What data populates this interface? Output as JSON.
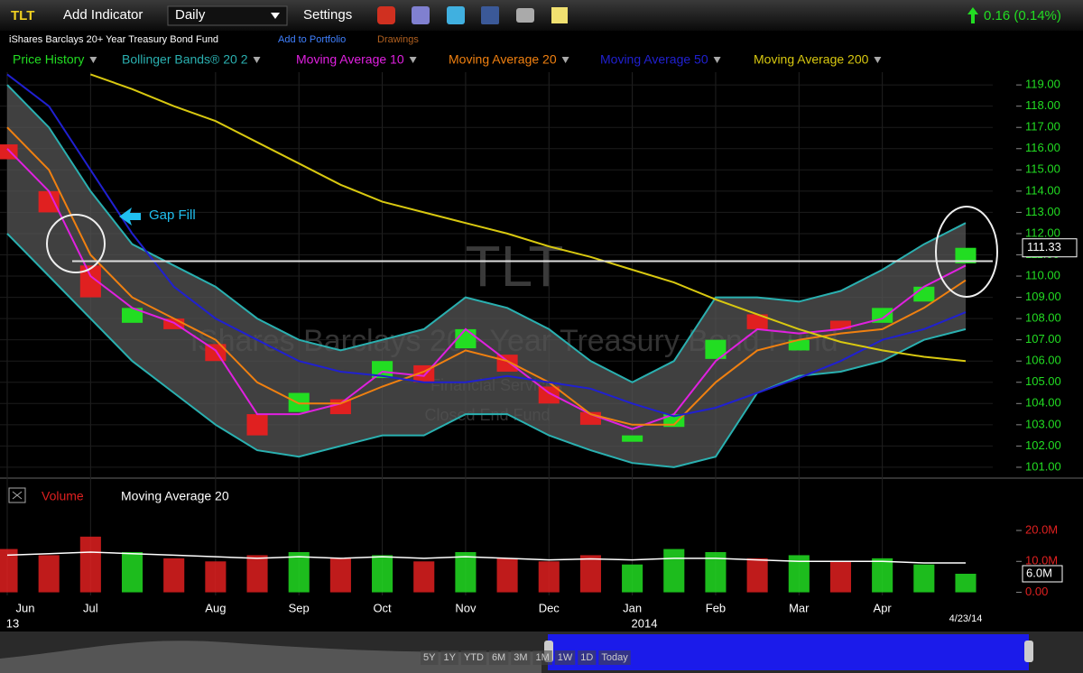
{
  "toolbar": {
    "symbol": "TLT",
    "add_indicator": "Add Indicator",
    "interval": "Daily",
    "settings": "Settings",
    "change": "0.16 (0.14%)"
  },
  "header": {
    "fund_name": "iShares Barclays 20+ Year Treasury Bond Fund",
    "add_to_portfolio": "Add to Portfolio",
    "drawings": "Drawings"
  },
  "chart_data": [
    {
      "type": "candlestick",
      "watermark": "TLT",
      "watermark_subtitle": "iShares Barclays 20+ Year Treasury Bond Fund",
      "watermark_sector": "Financial Services",
      "watermark_kind": "Closed End Fund",
      "price": {
        "name": "Price History",
        "color": "#22dd22",
        "down_color": "#e02020",
        "open": [
          116.2,
          114,
          110.5,
          107.8,
          108,
          106.8,
          103.5,
          103.6,
          104.2,
          105.2,
          105.8,
          106.6,
          106.3,
          104.8,
          103.6,
          102.2,
          102.9,
          106.1,
          108.2,
          106.5,
          107.9,
          107.8,
          108.8,
          110.6
        ],
        "close": [
          115.5,
          113,
          109,
          108.5,
          107.5,
          106,
          102.5,
          104.5,
          103.5,
          106,
          105,
          107.5,
          105.5,
          104,
          103,
          102.5,
          103.5,
          107,
          107.5,
          107,
          107.5,
          108.5,
          109.5,
          111.33
        ]
      },
      "bands": {
        "name": "Bollinger Bands® 20 2",
        "color": "#2ab0b0",
        "upper": [
          119,
          117,
          114,
          111.5,
          110.5,
          109.5,
          108,
          107,
          106.5,
          107,
          107.5,
          109,
          108.5,
          107.5,
          106,
          105,
          106,
          109,
          109,
          108.8,
          109.3,
          110.3,
          111.5,
          112.5
        ],
        "lower": [
          112,
          110,
          108,
          106,
          104.5,
          103,
          101.8,
          101.5,
          102,
          102.5,
          102.5,
          103.5,
          103.5,
          102.5,
          101.8,
          101.2,
          101,
          101.5,
          104.5,
          105.3,
          105.5,
          106,
          107,
          107.5
        ]
      },
      "series": [
        {
          "name": "Moving Average 10",
          "color": "#e020e0",
          "values": [
            116,
            114,
            110,
            108.5,
            107.8,
            106.5,
            103.5,
            103.5,
            104,
            105.5,
            105.3,
            107.5,
            106,
            104.5,
            103.5,
            102.8,
            103.5,
            106,
            107.5,
            107.3,
            107.5,
            108,
            109.5,
            110.5
          ]
        },
        {
          "name": "Moving Average 20",
          "color": "#f08010",
          "values": [
            117,
            115,
            111,
            109,
            108,
            107,
            105,
            104,
            104,
            104.8,
            105.5,
            106.5,
            106,
            105,
            103.5,
            103,
            103,
            105,
            106.5,
            107,
            107.3,
            107.5,
            108.5,
            109.8
          ]
        },
        {
          "name": "Moving Average 50",
          "color": "#2020d0",
          "values": [
            119.5,
            118,
            115,
            112,
            109.5,
            108,
            107,
            106,
            105.5,
            105.3,
            105,
            105,
            105.3,
            105,
            104.7,
            104,
            103.4,
            103.8,
            104.5,
            105.2,
            106,
            107,
            107.5,
            108.3
          ]
        },
        {
          "name": "Moving Average 200",
          "color": "#d8c810",
          "values": [
            null,
            null,
            119.5,
            118.8,
            118,
            117.3,
            116.3,
            115.3,
            114.3,
            113.5,
            113,
            112.5,
            112,
            111.4,
            110.9,
            110.3,
            109.7,
            108.9,
            108.2,
            107.5,
            106.9,
            106.5,
            106.2,
            106
          ]
        }
      ],
      "annotation": "Gap Fill",
      "hline": 110.7,
      "last_price": 111.33,
      "ylim": [
        100.7,
        119.6
      ],
      "yticks": [
        {
          "value": 101,
          "label": "101.00"
        },
        {
          "value": 102,
          "label": "102.00"
        },
        {
          "value": 103,
          "label": "103.00"
        },
        {
          "value": 104,
          "label": "104.00"
        },
        {
          "value": 105,
          "label": "105.00"
        },
        {
          "value": 106,
          "label": "106.00"
        },
        {
          "value": 107,
          "label": "107.00"
        },
        {
          "value": 108,
          "label": "108.00"
        },
        {
          "value": 109,
          "label": "109.00"
        },
        {
          "value": 110,
          "label": "110.00"
        },
        {
          "value": 111,
          "label": "111.00"
        },
        {
          "value": 112,
          "label": "112.00"
        },
        {
          "value": 113,
          "label": "113.00"
        },
        {
          "value": 114,
          "label": "114.00"
        },
        {
          "value": 115,
          "label": "115.00"
        },
        {
          "value": 116,
          "label": "116.00"
        },
        {
          "value": 117,
          "label": "117.00"
        },
        {
          "value": 118,
          "label": "118.00"
        },
        {
          "value": 119,
          "label": "119.00"
        }
      ],
      "grid": true
    },
    {
      "type": "bar",
      "name": "Volume",
      "categories": [
        "Jun",
        null,
        "Jul",
        null,
        null,
        "Aug",
        null,
        "Sep",
        null,
        "Oct",
        null,
        "Nov",
        null,
        "Dec",
        null,
        "Jan",
        null,
        "Feb",
        null,
        "Mar",
        null,
        "Apr",
        null,
        null
      ],
      "values": [
        14000000,
        12000000,
        18000000,
        13000000,
        11000000,
        10000000,
        12000000,
        13000000,
        11000000,
        12000000,
        10000000,
        13000000,
        11000000,
        10000000,
        12000000,
        9000000,
        14000000,
        13000000,
        11000000,
        12000000,
        10000000,
        11000000,
        9000000,
        6000000
      ],
      "series": [
        {
          "name": "Moving Average 20",
          "color": "#ffffff",
          "values": [
            12000000,
            12500000,
            13000000,
            12500000,
            12000000,
            11500000,
            11000000,
            11500000,
            11000000,
            11500000,
            11000000,
            11500000,
            11000000,
            10500000,
            10800000,
            10500000,
            11000000,
            11000000,
            10500000,
            10000000,
            10000000,
            10000000,
            9500000,
            9500000
          ]
        }
      ],
      "last_volume": {
        "value": 6000000,
        "label": "6.0M"
      },
      "ylim": [
        -1000000,
        34000000
      ],
      "yticks": [
        {
          "value": 0,
          "label": "0.00"
        },
        {
          "value": 10000000,
          "label": "10.0M"
        },
        {
          "value": 20000000,
          "label": "20.0M"
        }
      ]
    }
  ],
  "time_axis": {
    "start_year": "13",
    "year": "2014",
    "date": "4/23/14"
  },
  "navigator": {
    "buttons": [
      "5Y",
      "1Y",
      "YTD",
      "6M",
      "3M",
      "1M",
      "1W",
      "1D",
      "Today"
    ]
  }
}
